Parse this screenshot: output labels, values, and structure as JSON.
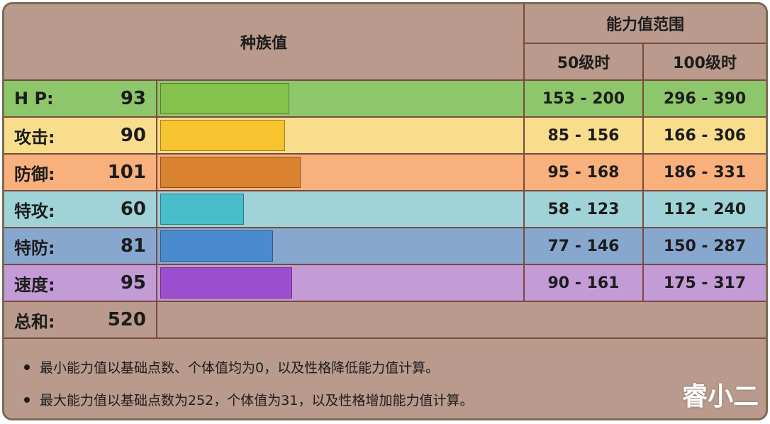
{
  "header": {
    "base_stats": "种族值",
    "stat_range": "能力值范围",
    "level50": "50级时",
    "level100": "100级时"
  },
  "rows": [
    {
      "label": "H P:",
      "value": "93",
      "bar_value": 93,
      "lv50": "153 - 200",
      "lv100": "296 - 390",
      "row_color": "#8ec76b",
      "bar_color": "#85c24e"
    },
    {
      "label": "攻击:",
      "value": "90",
      "bar_value": 90,
      "lv50": "85 - 156",
      "lv100": "166 - 306",
      "row_color": "#f8dd8c",
      "bar_color": "#f5c42f"
    },
    {
      "label": "防御:",
      "value": "101",
      "bar_value": 101,
      "lv50": "95 - 168",
      "lv100": "186 - 331",
      "row_color": "#f8b07c",
      "bar_color": "#d9822f"
    },
    {
      "label": "特攻:",
      "value": "60",
      "bar_value": 60,
      "lv50": "58 - 123",
      "lv100": "112 - 240",
      "row_color": "#9fd3d8",
      "bar_color": "#49bdcc"
    },
    {
      "label": "特防:",
      "value": "81",
      "bar_value": 81,
      "lv50": "77 - 146",
      "lv100": "150 - 287",
      "row_color": "#87a7cf",
      "bar_color": "#4a8acf"
    },
    {
      "label": "速度:",
      "value": "95",
      "bar_value": 95,
      "lv50": "90 - 161",
      "lv100": "175 - 317",
      "row_color": "#c39bd6",
      "bar_color": "#9d4ecf"
    }
  ],
  "total": {
    "label": "总和:",
    "value": "520"
  },
  "notes": [
    "最小能力值以基础点数、个体值均为0，以及性格降低能力值计算。",
    "最大能力值以基础点数为252，个体值为31，以及性格增加能力值计算。"
  ],
  "watermark": "睿小二",
  "bar_scale_max": 255
}
